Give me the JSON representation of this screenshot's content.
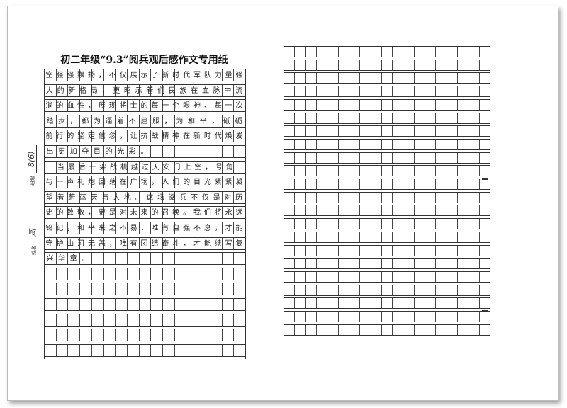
{
  "document": {
    "title": "初二年级“9.3”阅兵观后感作文专用纸",
    "side_labels": {
      "class_label": "班级",
      "class_value": "8(6)",
      "name_label": "姓名",
      "name_value": "凤"
    },
    "left_page": {
      "columns": 17,
      "rows": 19,
      "lines": [
        "空强强飘扬，不仅展示了新时代军队力量强",
        "大的新格局，更昭示着们民族在血脉中流",
        "淌的血性，展现将士的每一个眼神、每一次",
        "踏步，都为逼着不屈服，为和平，砥砺",
        "前行的坚定信念，让抗战精神在新时代焕发",
        "出更加夺目的光彩。",
        "  当最后一架战机越过天安门上空，号角",
        "与一声礼炮回荡在广场，人们的目光紧紧凝",
        "望着蔚蓝天与大地。这场阅兵不仅是对历",
        "史的致敬，更是对未来的召唤。我们将永远",
        "铭记，和平来之不易，唯有自强不息，才能",
        "守护山河无恙；唯有团结奋斗，才能续写复",
        "兴华章。"
      ]
    },
    "right_page": {
      "columns": 19,
      "rows": 22
    }
  }
}
